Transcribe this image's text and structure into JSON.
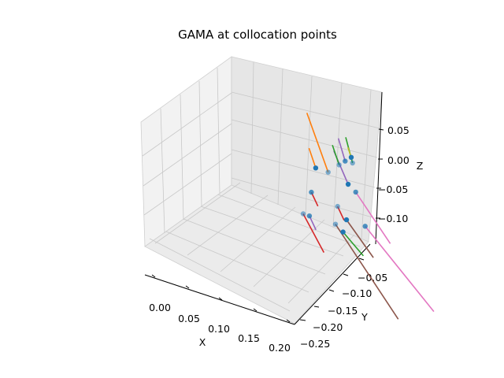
{
  "chart_data": {
    "type": "scatter",
    "projection": "3d",
    "title": "GAMA at collocation points",
    "xlabel": "X",
    "ylabel": "Y",
    "zlabel": "Z",
    "xticks": [
      "0.00",
      "0.05",
      "0.10",
      "0.15",
      "0.20"
    ],
    "yticks": [
      "−0.25",
      "−0.20",
      "−0.15",
      "−0.10",
      "−0.05"
    ],
    "zticks": [
      "0.05",
      "0.00",
      "−0.05",
      "−0.10"
    ],
    "grid": true,
    "marker_color": "#1f77b4",
    "line_colors": [
      "#ff7f0e",
      "#2ca02c",
      "#d62728",
      "#9467bd",
      "#8c564b",
      "#e377c2",
      "#bcbd22"
    ],
    "points": [
      {
        "x": 0.0,
        "y": -0.1,
        "z": -0.05,
        "vx": 0.02,
        "vy": -0.01,
        "vz": -0.045,
        "color": "#d62728"
      },
      {
        "x": 0.01,
        "y": -0.1,
        "z": -0.05,
        "vx": 0.01,
        "vy": 0.0,
        "vz": -0.02,
        "color": "#9467bd"
      },
      {
        "x": 0.04,
        "y": -0.12,
        "z": -0.04,
        "vx": 0.02,
        "vy": -0.01,
        "vz": -0.02,
        "color": "#2ca02c"
      },
      {
        "x": 0.04,
        "y": -0.11,
        "z": -0.04,
        "vx": 0.05,
        "vy": -0.04,
        "vz": -0.09,
        "color": "#8c564b"
      },
      {
        "x": 0.05,
        "y": -0.07,
        "z": -0.035,
        "vx": 0.01,
        "vy": 0.0,
        "vz": -0.02,
        "color": "#d62728"
      },
      {
        "x": 0.07,
        "y": -0.1,
        "z": -0.035,
        "vx": 0.03,
        "vy": -0.01,
        "vz": -0.04,
        "color": "#8c564b"
      },
      {
        "x": 0.08,
        "y": -0.08,
        "z": -0.035,
        "vx": 0.01,
        "vy": 0.0,
        "vz": -0.02,
        "color": "#d62728"
      },
      {
        "x": 0.1,
        "y": -0.1,
        "z": -0.035,
        "vx": 0.06,
        "vy": -0.04,
        "vz": -0.07,
        "color": "#e377c2"
      },
      {
        "x": 0.07,
        "y": -0.06,
        "z": 0.0,
        "vx": -0.01,
        "vy": 0.0,
        "vz": 0.03,
        "color": "#ff7f0e"
      },
      {
        "x": 0.09,
        "y": -0.06,
        "z": 0.0,
        "vx": -0.02,
        "vy": 0.01,
        "vz": 0.08,
        "color": "#ff7f0e"
      },
      {
        "x": 0.11,
        "y": -0.08,
        "z": 0.0,
        "vx": 0.03,
        "vy": -0.02,
        "vz": -0.05,
        "color": "#e377c2"
      },
      {
        "x": 0.11,
        "y": -0.07,
        "z": 0.0,
        "vx": -0.01,
        "vy": 0.01,
        "vz": 0.04,
        "color": "#9467bd"
      },
      {
        "x": 0.13,
        "y": -0.06,
        "z": 0.03,
        "vx": -0.01,
        "vy": 0.0,
        "vz": 0.04,
        "color": "#2ca02c"
      },
      {
        "x": 0.13,
        "y": -0.05,
        "z": 0.02,
        "vx": -0.01,
        "vy": 0.0,
        "vz": 0.035,
        "color": "#9467bd"
      },
      {
        "x": 0.14,
        "y": -0.05,
        "z": 0.03,
        "vx": -0.005,
        "vy": 0.0,
        "vz": 0.015,
        "color": "#bcbd22"
      },
      {
        "x": 0.12,
        "y": -0.05,
        "z": 0.01,
        "vx": -0.01,
        "vy": 0.0,
        "vz": 0.03,
        "color": "#2ca02c"
      }
    ]
  }
}
